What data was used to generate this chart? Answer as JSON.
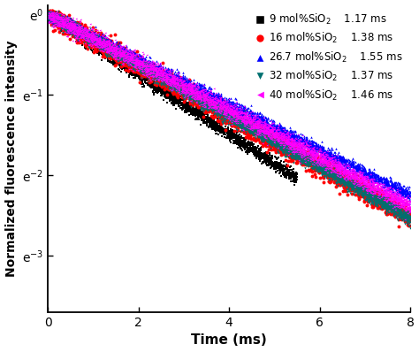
{
  "title": "",
  "xlabel": "Time (ms)",
  "ylabel": "Normalized fluorescence intensity",
  "xlim": [
    0,
    8
  ],
  "series": [
    {
      "label": "9 mol%SiO$_2$",
      "lifetime": "1.17 ms",
      "tau": 1.17,
      "color": "black",
      "marker": "s",
      "markersize": 1.8,
      "noise_scale": 0.04,
      "t_max": 5.5,
      "n_points": 3000
    },
    {
      "label": "16 mol%SiO$_2$",
      "lifetime": "1.38 ms",
      "tau": 1.38,
      "color": "red",
      "marker": "o",
      "markersize": 2.8,
      "noise_scale": 0.06,
      "t_max": 8.0,
      "n_points": 3500
    },
    {
      "label": "26.7 mol%SiO$_2$",
      "lifetime": "1.55 ms",
      "tau": 1.55,
      "color": "blue",
      "marker": "^",
      "markersize": 1.8,
      "noise_scale": 0.04,
      "t_max": 8.0,
      "n_points": 4000
    },
    {
      "label": "32 mol%SiO$_2$",
      "lifetime": "1.37 ms",
      "tau": 1.37,
      "color": "#007070",
      "marker": "v",
      "markersize": 1.8,
      "noise_scale": 0.04,
      "t_max": 8.0,
      "n_points": 4500
    },
    {
      "label": "40 mol%SiO$_2$",
      "lifetime": "1.46 ms",
      "tau": 1.46,
      "color": "magenta",
      "marker": "<",
      "markersize": 1.5,
      "noise_scale": 0.05,
      "t_max": 8.0,
      "n_points": 5500
    }
  ],
  "ytick_labels": [
    "e$^{-3}$",
    "e$^{-2}$",
    "e$^{-1}$",
    "e$^{0}$"
  ],
  "ytick_values": [
    -3,
    -2,
    -1,
    0
  ],
  "background_color": "#ffffff",
  "legend_fontsize": 8.5,
  "axis_fontsize": 11,
  "tick_fontsize": 10
}
